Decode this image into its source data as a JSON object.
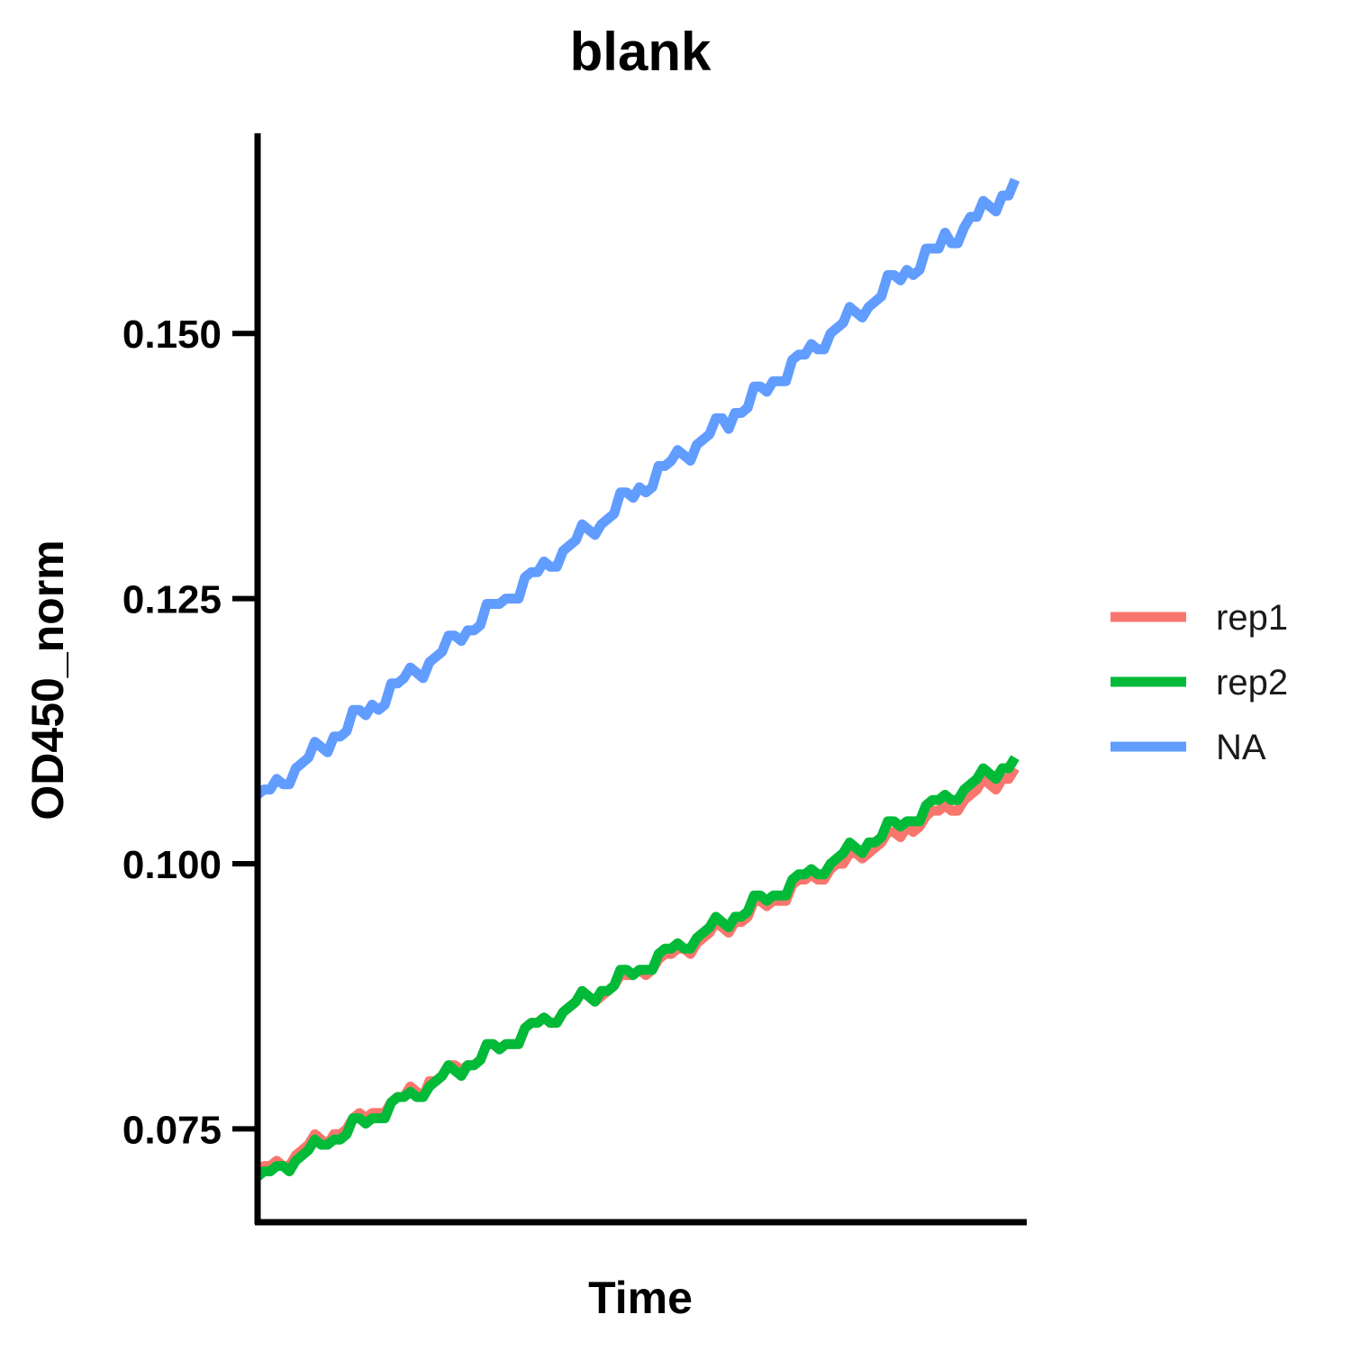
{
  "chart_data": {
    "type": "line",
    "title": "blank",
    "xlabel": "Time",
    "ylabel": "OD450_norm",
    "x_ticks_shown": false,
    "ylim": [
      0.0662,
      0.1687
    ],
    "y_ticks": [
      0.075,
      0.1,
      0.125,
      0.15
    ],
    "y_tick_labels": [
      "0.075",
      "0.100",
      "0.125",
      "0.150"
    ],
    "grid": false,
    "legend_position": "right",
    "series": [
      {
        "name": "rep1",
        "color": "#F8766D",
        "start": 0.071,
        "end": 0.109,
        "quantum": 0.001,
        "stair_period": 3,
        "wobble": 0.0005
      },
      {
        "name": "rep2",
        "color": "#00BA38",
        "start": 0.0705,
        "end": 0.11,
        "quantum": 0.001,
        "stair_period": 3,
        "wobble": 0.0005
      },
      {
        "name": "NA",
        "color": "#619CFF",
        "start": 0.1065,
        "end": 0.1645,
        "quantum": 0.001,
        "stair_period": 3,
        "wobble": 0.0006
      }
    ]
  }
}
